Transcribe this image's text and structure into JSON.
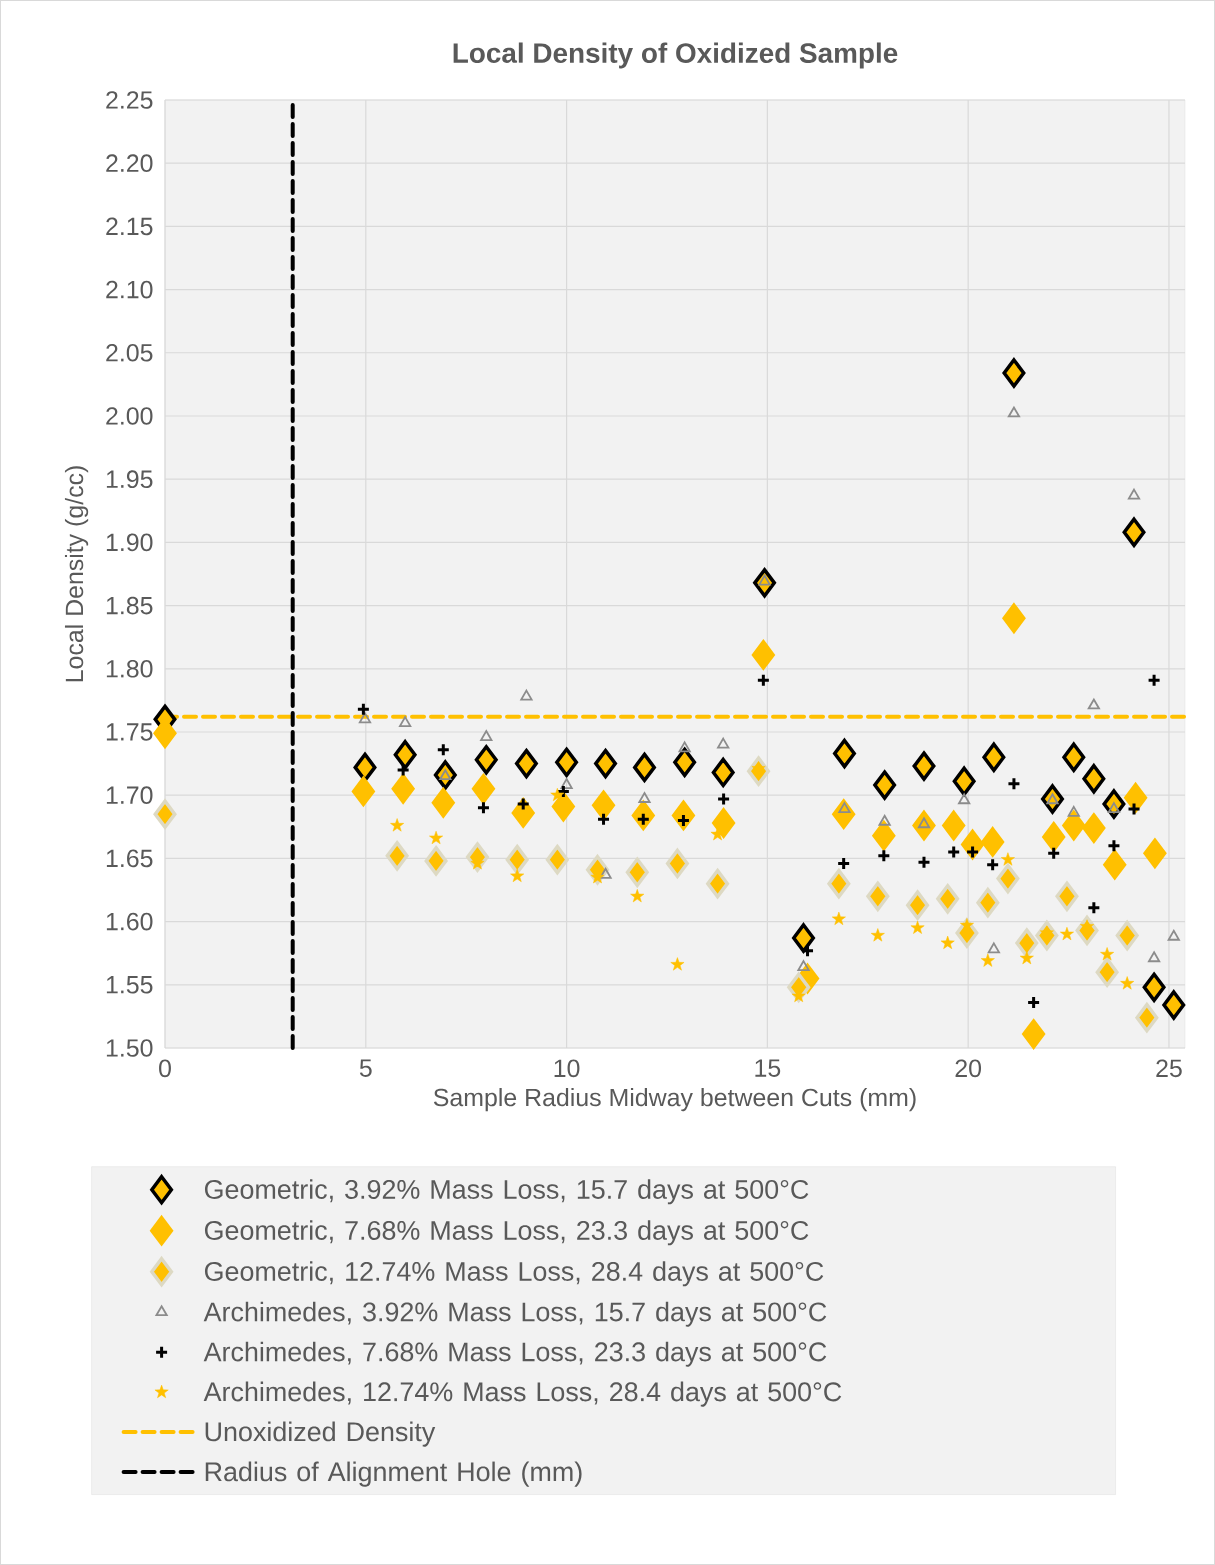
{
  "chart_data": {
    "type": "scatter",
    "title": "Local Density of Oxidized Sample",
    "xlabel": "Sample Radius Midway between Cuts (mm)",
    "ylabel": "Local Density (g/cc)",
    "xlim": [
      0,
      25.4
    ],
    "ylim": [
      1.5,
      2.25
    ],
    "xticks": [
      0,
      5,
      10,
      15,
      20,
      25
    ],
    "yticks": [
      {
        "value": 1.5,
        "label": "1.50"
      },
      {
        "value": 1.55,
        "label": "1.55"
      },
      {
        "value": 1.6,
        "label": "1.60"
      },
      {
        "value": 1.65,
        "label": "1.65"
      },
      {
        "value": 1.7,
        "label": "1.70"
      },
      {
        "value": 1.75,
        "label": "1.75"
      },
      {
        "value": 1.8,
        "label": "1.80"
      },
      {
        "value": 1.85,
        "label": "1.85"
      },
      {
        "value": 1.9,
        "label": "1.90"
      },
      {
        "value": 1.95,
        "label": "1.95"
      },
      {
        "value": 2.0,
        "label": "2.00"
      },
      {
        "value": 2.05,
        "label": "2.05"
      },
      {
        "value": 2.1,
        "label": "2.10"
      },
      {
        "value": 2.15,
        "label": "2.15"
      },
      {
        "value": 2.2,
        "label": "2.20"
      },
      {
        "value": 2.25,
        "label": "2.25"
      }
    ],
    "grid": true,
    "legend": "bottom",
    "series": [
      {
        "name": "Geometric, 3.92% Mass Loss, 15.7 days at 500°C",
        "color": "#000000",
        "marker": "diamond",
        "x": [
          0,
          4.98,
          5.98,
          6.98,
          8.0,
          9.0,
          10.0,
          10.97,
          11.94,
          12.94,
          13.9,
          14.93,
          15.9,
          16.92,
          17.92,
          18.9,
          19.9,
          20.64,
          21.14,
          22.1,
          22.63,
          23.13,
          23.63,
          24.13,
          24.63,
          25.12
        ],
        "values": [
          1.76,
          1.722,
          1.732,
          1.716,
          1.728,
          1.725,
          1.726,
          1.725,
          1.722,
          1.726,
          1.718,
          1.868,
          1.587,
          1.733,
          1.708,
          1.723,
          1.711,
          1.73,
          2.034,
          1.697,
          1.73,
          1.713,
          1.693,
          1.908,
          1.548,
          1.534
        ]
      },
      {
        "name": "Geometric, 7.68% Mass Loss, 23.3 days at 500°C",
        "color": "#ffc000",
        "marker": "diamond",
        "x": [
          0,
          4.94,
          5.93,
          6.93,
          7.93,
          8.92,
          9.92,
          10.92,
          11.91,
          12.91,
          13.91,
          14.9,
          16.0,
          16.9,
          17.9,
          18.9,
          19.64,
          20.11,
          20.61,
          21.14,
          21.63,
          22.13,
          22.63,
          23.13,
          23.65,
          24.17,
          24.65
        ],
        "values": [
          1.749,
          1.703,
          1.705,
          1.694,
          1.705,
          1.686,
          1.691,
          1.692,
          1.684,
          1.684,
          1.678,
          1.811,
          1.555,
          1.685,
          1.668,
          1.676,
          1.676,
          1.661,
          1.663,
          1.84,
          1.511,
          1.667,
          1.676,
          1.674,
          1.645,
          1.698,
          1.654
        ]
      },
      {
        "name": "Geometric, 12.74% Mass Loss, 28.4 days at 500°C",
        "color": "#ddd9c3",
        "marker": "diamond",
        "x": [
          0,
          5.78,
          6.75,
          7.78,
          8.77,
          9.77,
          10.77,
          11.76,
          12.76,
          13.76,
          14.78,
          15.78,
          16.78,
          17.75,
          18.74,
          19.49,
          19.97,
          20.49,
          20.99,
          21.46,
          21.96,
          22.46,
          22.96,
          23.46,
          23.96,
          24.45
        ],
        "values": [
          1.685,
          1.652,
          1.648,
          1.651,
          1.649,
          1.649,
          1.641,
          1.639,
          1.646,
          1.63,
          1.719,
          1.548,
          1.63,
          1.62,
          1.613,
          1.618,
          1.591,
          1.615,
          1.634,
          1.583,
          1.589,
          1.62,
          1.593,
          1.56,
          1.589,
          1.524
        ]
      },
      {
        "name": "Archimedes, 3.92% Mass Loss, 15.7 days at 500°C",
        "color": "#8c8c8c",
        "marker": "triangle",
        "x": [
          4.98,
          5.98,
          6.98,
          8.0,
          9.0,
          10.0,
          10.97,
          11.94,
          12.94,
          13.9,
          14.93,
          15.9,
          16.92,
          17.92,
          18.9,
          19.9,
          20.64,
          21.14,
          22.1,
          22.63,
          23.13,
          23.63,
          24.13,
          24.63,
          25.12
        ],
        "values": [
          1.76,
          1.757,
          1.715,
          1.746,
          1.778,
          1.708,
          1.637,
          1.697,
          1.737,
          1.74,
          1.869,
          1.564,
          1.689,
          1.679,
          1.677,
          1.696,
          1.578,
          2.002,
          1.696,
          1.686,
          1.771,
          1.689,
          1.937,
          1.571,
          1.588
        ]
      },
      {
        "name": "Archimedes, 7.68% Mass Loss, 23.3 days at 500°C",
        "color": "#000000",
        "marker": "cross",
        "x": [
          4.94,
          5.93,
          6.93,
          7.93,
          8.92,
          9.92,
          10.92,
          11.91,
          12.91,
          13.91,
          14.9,
          16.0,
          16.9,
          17.9,
          18.9,
          19.64,
          20.11,
          20.61,
          21.14,
          21.63,
          22.13,
          23.13,
          23.63,
          24.13,
          24.63
        ],
        "values": [
          1.768,
          1.72,
          1.736,
          1.69,
          1.693,
          1.703,
          1.681,
          1.681,
          1.68,
          1.697,
          1.791,
          1.577,
          1.646,
          1.652,
          1.647,
          1.655,
          1.655,
          1.645,
          1.709,
          1.536,
          1.654,
          1.611,
          1.66,
          1.689,
          1.791
        ]
      },
      {
        "name": "Archimedes, 12.74% Mass Loss, 28.4 days at 500°C",
        "color": "#ffc000",
        "marker": "star",
        "x": [
          5.78,
          6.75,
          7.78,
          8.77,
          9.77,
          10.77,
          11.76,
          12.76,
          13.76,
          14.78,
          15.78,
          16.78,
          17.75,
          18.74,
          19.49,
          19.97,
          20.49,
          20.99,
          21.46,
          21.96,
          22.46,
          22.96,
          23.46,
          23.96
        ],
        "values": [
          1.676,
          1.666,
          1.646,
          1.636,
          1.7,
          1.635,
          1.62,
          1.566,
          1.669,
          1.721,
          1.541,
          1.602,
          1.589,
          1.595,
          1.583,
          1.597,
          1.569,
          1.649,
          1.571,
          1.591,
          1.59,
          1.596,
          1.574,
          1.551
        ]
      }
    ],
    "ref_lines": [
      {
        "axis": "y",
        "value": 1.762,
        "label": "Unoxidized Density",
        "color": "#ffc000",
        "line_style": "dashed"
      },
      {
        "axis": "x",
        "value": 3.18,
        "label": "Radius of Alignment Hole (mm)",
        "color": "#000000",
        "line_style": "dashed"
      }
    ]
  }
}
